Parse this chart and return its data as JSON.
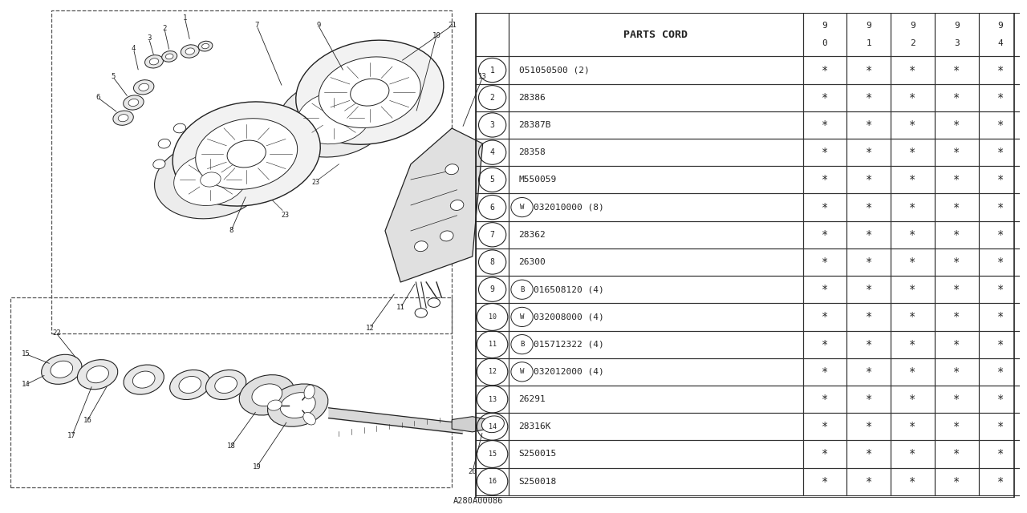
{
  "bg_color": "#ffffff",
  "ref_code": "A280A00086",
  "rows": [
    [
      "1",
      "051050500 (2)",
      "*",
      "*",
      "*",
      "*",
      "*"
    ],
    [
      "2",
      "28386",
      "*",
      "*",
      "*",
      "*",
      "*"
    ],
    [
      "3",
      "28387B",
      "*",
      "*",
      "*",
      "*",
      "*"
    ],
    [
      "4",
      "28358",
      "*",
      "*",
      "*",
      "*",
      "*"
    ],
    [
      "5",
      "M550059",
      "*",
      "*",
      "*",
      "*",
      "*"
    ],
    [
      "6",
      "W032010000 (8)",
      "*",
      "*",
      "*",
      "*",
      "*"
    ],
    [
      "7",
      "28362",
      "*",
      "*",
      "*",
      "*",
      "*"
    ],
    [
      "8",
      "26300",
      "*",
      "*",
      "*",
      "*",
      "*"
    ],
    [
      "9",
      "B016508120 (4)",
      "*",
      "*",
      "*",
      "*",
      "*"
    ],
    [
      "10",
      "W032008000 (4)",
      "*",
      "*",
      "*",
      "*",
      "*"
    ],
    [
      "11",
      "B015712322 (4)",
      "*",
      "*",
      "*",
      "*",
      "*"
    ],
    [
      "12",
      "W032012000 (4)",
      "*",
      "*",
      "*",
      "*",
      "*"
    ],
    [
      "13",
      "26291",
      "*",
      "*",
      "*",
      "*",
      "*"
    ],
    [
      "14",
      "28316K",
      "*",
      "*",
      "*",
      "*",
      "*"
    ],
    [
      "15",
      "S250015",
      "*",
      "*",
      "*",
      "*",
      "*"
    ],
    [
      "16",
      "S250018",
      "*",
      "*",
      "*",
      "*",
      "*"
    ]
  ],
  "year_tops": [
    "9",
    "9",
    "9",
    "9",
    "9"
  ],
  "year_bots": [
    "0",
    "1",
    "2",
    "3",
    "4"
  ],
  "header_label": "PARTS CΟRD"
}
